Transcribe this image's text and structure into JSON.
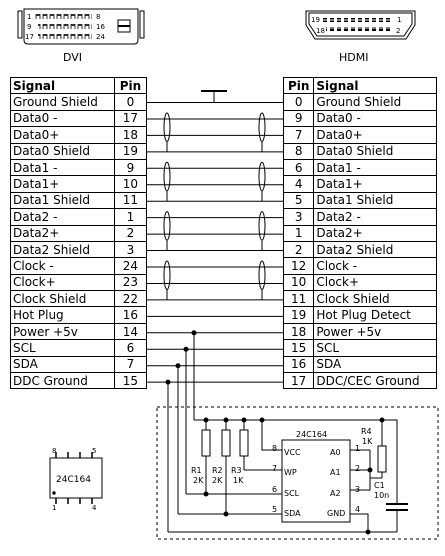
{
  "connectors": {
    "dvi": "DVI",
    "hdmi": "HDMI"
  },
  "dvi_face": {
    "row1": "1",
    "row1_end": "8",
    "row2": "9",
    "row2_end": "16",
    "row3": "17",
    "row3_end": "24"
  },
  "hdmi_face": {
    "top_left": "19",
    "top_right": "1",
    "bottom_left": "18",
    "bottom_right": "2"
  },
  "dvi": {
    "head_signal": "Signal",
    "head_pin": "Pin",
    "rows": [
      {
        "signal": "Ground Shield",
        "pin": "0"
      },
      {
        "signal": "Data0 -",
        "pin": "17"
      },
      {
        "signal": "Data0+",
        "pin": "18"
      },
      {
        "signal": "Data0 Shield",
        "pin": "19"
      },
      {
        "signal": "Data1 -",
        "pin": "9"
      },
      {
        "signal": "Data1+",
        "pin": "10"
      },
      {
        "signal": "Data1 Shield",
        "pin": "11"
      },
      {
        "signal": "Data2 -",
        "pin": "1"
      },
      {
        "signal": "Data2+",
        "pin": "2"
      },
      {
        "signal": "Data2 Shield",
        "pin": "3"
      },
      {
        "signal": "Clock -",
        "pin": "24"
      },
      {
        "signal": "Clock+",
        "pin": "23"
      },
      {
        "signal": "Clock Shield",
        "pin": "22"
      },
      {
        "signal": "Hot Plug",
        "pin": "16"
      },
      {
        "signal": "Power +5v",
        "pin": "14"
      },
      {
        "signal": "SCL",
        "pin": "6"
      },
      {
        "signal": "SDA",
        "pin": "7"
      },
      {
        "signal": "DDC Ground",
        "pin": "15"
      }
    ]
  },
  "hdmi": {
    "head_signal": "Signal",
    "head_pin": "Pin",
    "rows": [
      {
        "signal": "Ground Shield",
        "pin": "0"
      },
      {
        "signal": "Data0 -",
        "pin": "9"
      },
      {
        "signal": "Data0+",
        "pin": "7"
      },
      {
        "signal": "Data0 Shield",
        "pin": "8"
      },
      {
        "signal": "Data1 -",
        "pin": "6"
      },
      {
        "signal": "Data1+",
        "pin": "4"
      },
      {
        "signal": "Data1 Shield",
        "pin": "5"
      },
      {
        "signal": "Data2 -",
        "pin": "3"
      },
      {
        "signal": "Data2+",
        "pin": "1"
      },
      {
        "signal": "Data2 Shield",
        "pin": "2"
      },
      {
        "signal": "Clock -",
        "pin": "12"
      },
      {
        "signal": "Clock+",
        "pin": "10"
      },
      {
        "signal": "Clock Shield",
        "pin": "11"
      },
      {
        "signal": "Hot Plug Detect",
        "pin": "19"
      },
      {
        "signal": "Power +5v",
        "pin": "18"
      },
      {
        "signal": "SCL",
        "pin": "15"
      },
      {
        "signal": "SDA",
        "pin": "16"
      },
      {
        "signal": "DDC/CEC Ground",
        "pin": "17"
      }
    ]
  },
  "ic": {
    "name": "24C164",
    "pins_left": [
      "VCC",
      "WP",
      "SCL",
      "SDA"
    ],
    "pins_left_num": [
      "8",
      "7",
      "6",
      "5"
    ],
    "pins_right": [
      "A0",
      "A1",
      "A2",
      "GND"
    ],
    "pins_right_num": [
      "1",
      "2",
      "3",
      "4"
    ]
  },
  "package": {
    "name": "24C164",
    "pin8": "8",
    "pin5": "5",
    "pin1": "1",
    "pin4": "4"
  },
  "components": [
    {
      "ref": "R1",
      "value": "2K"
    },
    {
      "ref": "R2",
      "value": "2K"
    },
    {
      "ref": "R3",
      "value": "1K"
    },
    {
      "ref": "R4",
      "value": "1K"
    },
    {
      "ref": "C1",
      "value": "10n"
    }
  ]
}
